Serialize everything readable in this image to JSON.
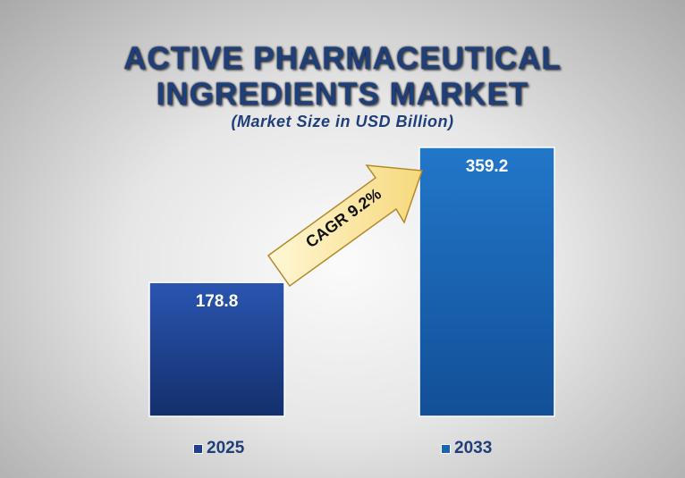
{
  "title_line1": "ACTIVE PHARMACEUTICAL",
  "title_line2": "INGREDIENTS MARKET",
  "subtitle": "(Market Size in USD Billion)",
  "annotation": "CAGR 9.2%",
  "colors": {
    "title": "#1f3f7a",
    "bar_2025": "#1e3f8f",
    "bar_2033": "#1a64b4",
    "arrow_fill": "#fde9a8",
    "arrow_stroke": "#b38a2a"
  },
  "chart_data": {
    "type": "bar",
    "title": "ACTIVE PHARMACEUTICAL INGREDIENTS MARKET",
    "subtitle": "(Market Size in USD Billion)",
    "categories": [
      "2025",
      "2033"
    ],
    "values": [
      178.8,
      359.2
    ],
    "data_labels": [
      "178.8",
      "359.2"
    ],
    "legend": [
      "2025",
      "2033"
    ],
    "legend_position": "bottom",
    "grid": false,
    "annotation": "CAGR 9.2%"
  }
}
